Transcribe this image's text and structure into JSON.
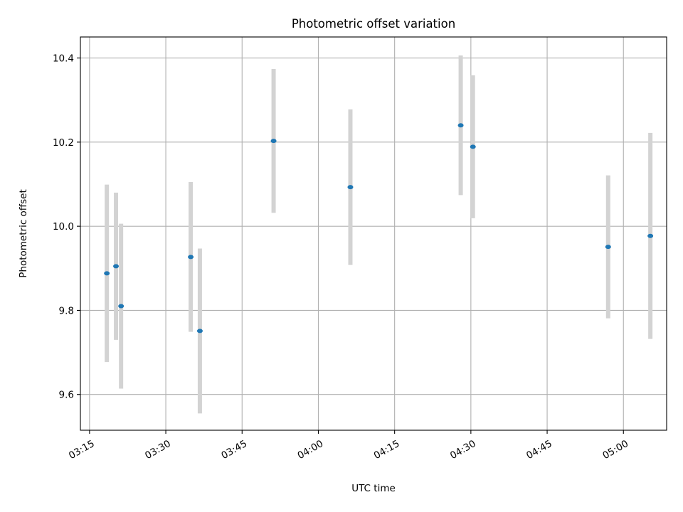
{
  "chart_data": {
    "type": "scatter",
    "title": "Photometric offset variation",
    "xlabel": "UTC time",
    "ylabel": "Photometric offset",
    "x_unit": "minutes since 00:00 UTC",
    "xlim": [
      193.2,
      308.5
    ],
    "ylim": [
      9.515,
      10.45
    ],
    "grid": true,
    "x_ticks": [
      {
        "value": 195,
        "label": "03:15"
      },
      {
        "value": 210,
        "label": "03:30"
      },
      {
        "value": 225,
        "label": "03:45"
      },
      {
        "value": 240,
        "label": "04:00"
      },
      {
        "value": 255,
        "label": "04:15"
      },
      {
        "value": 270,
        "label": "04:30"
      },
      {
        "value": 285,
        "label": "04:45"
      },
      {
        "value": 300,
        "label": "05:00"
      }
    ],
    "y_ticks": [
      {
        "value": 9.6,
        "label": "9.6"
      },
      {
        "value": 9.8,
        "label": "9.8"
      },
      {
        "value": 10.0,
        "label": "10.0"
      },
      {
        "value": 10.2,
        "label": "10.2"
      },
      {
        "value": 10.4,
        "label": "10.4"
      }
    ],
    "series": [
      {
        "name": "Photometric offset",
        "marker_color": "#1f77b4",
        "errorbar_color": "#d3d3d3",
        "points": [
          {
            "x": 198.4,
            "y": 9.888,
            "yerr": 0.211
          },
          {
            "x": 200.2,
            "y": 9.905,
            "yerr": 0.175
          },
          {
            "x": 201.2,
            "y": 9.81,
            "yerr": 0.196
          },
          {
            "x": 214.9,
            "y": 9.927,
            "yerr": 0.178
          },
          {
            "x": 216.7,
            "y": 9.751,
            "yerr": 0.196
          },
          {
            "x": 231.2,
            "y": 10.203,
            "yerr": 0.171
          },
          {
            "x": 246.3,
            "y": 10.093,
            "yerr": 0.185
          },
          {
            "x": 268.0,
            "y": 10.24,
            "yerr": 0.166
          },
          {
            "x": 270.4,
            "y": 10.189,
            "yerr": 0.17
          },
          {
            "x": 297.0,
            "y": 9.951,
            "yerr": 0.17
          },
          {
            "x": 305.3,
            "y": 9.977,
            "yerr": 0.245
          }
        ]
      }
    ]
  }
}
